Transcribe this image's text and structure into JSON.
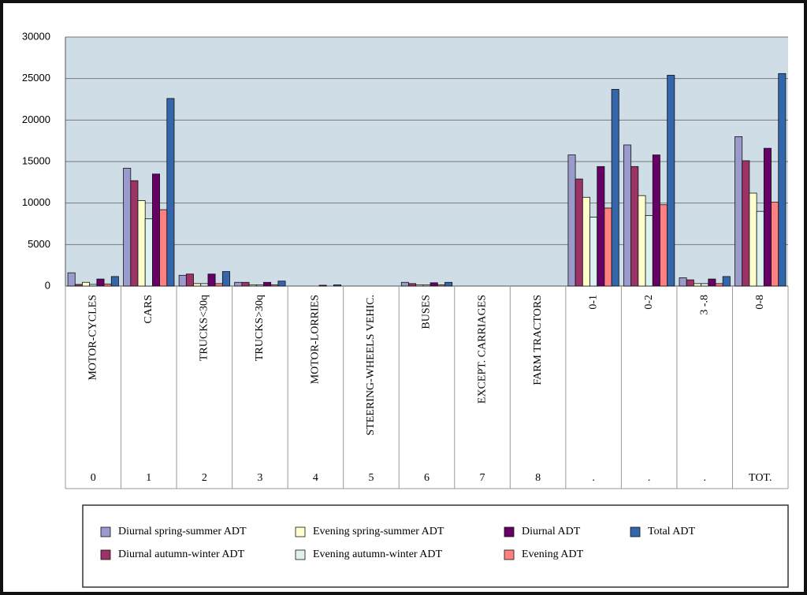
{
  "chart_data": {
    "type": "bar",
    "categories": [
      "MOTOR-CYCLES",
      "CARS",
      "TRUCKS<30q",
      "TRUCKS>30q",
      "MOTOR-LORRIES",
      "STEERING-WHEELS VEHIC.",
      "BUSES",
      "EXCEPT. CARRIAGES",
      "FARM TRACTORS",
      "0-1",
      "0-2",
      "3 -.8",
      "0-8"
    ],
    "category_codes": [
      "0",
      "1",
      "2",
      "3",
      "4",
      "5",
      "6",
      "7",
      "8",
      ".",
      ".",
      ".",
      "TOT."
    ],
    "series": [
      {
        "name": "Diurnal spring-summer ADT",
        "color": "#9a9acc",
        "values": [
          1600,
          14200,
          1300,
          450,
          0,
          0,
          450,
          0,
          0,
          15800,
          17000,
          1000,
          18000
        ]
      },
      {
        "name": "Diurnal autumn-winter ADT",
        "color": "#9b3366",
        "values": [
          200,
          12700,
          1450,
          450,
          0,
          0,
          300,
          0,
          0,
          12900,
          14400,
          750,
          15100
        ]
      },
      {
        "name": "Evening spring-summer ADT",
        "color": "#ffffcc",
        "values": [
          450,
          10300,
          300,
          150,
          0,
          0,
          150,
          0,
          0,
          10700,
          10900,
          300,
          11200
        ]
      },
      {
        "name": "Evening autumn-winter ADT",
        "color": "#def1f1",
        "values": [
          200,
          8100,
          300,
          150,
          0,
          0,
          150,
          0,
          0,
          8300,
          8500,
          300,
          9000
        ]
      },
      {
        "name": "Diurnal ADT",
        "color": "#660066",
        "values": [
          850,
          13500,
          1450,
          450,
          100,
          0,
          400,
          0,
          0,
          14400,
          15800,
          850,
          16600
        ]
      },
      {
        "name": "Evening ADT",
        "color": "#ff8080",
        "values": [
          250,
          9200,
          300,
          150,
          0,
          0,
          150,
          0,
          0,
          9400,
          9800,
          300,
          10100
        ]
      },
      {
        "name": "Total ADT",
        "color": "#3366aa",
        "values": [
          1150,
          22600,
          1750,
          600,
          150,
          0,
          450,
          0,
          0,
          23700,
          25400,
          1150,
          25600
        ]
      }
    ],
    "ylim": [
      0,
      30000
    ],
    "yticks": [
      0,
      5000,
      10000,
      15000,
      20000,
      25000,
      30000
    ],
    "grid": true
  }
}
